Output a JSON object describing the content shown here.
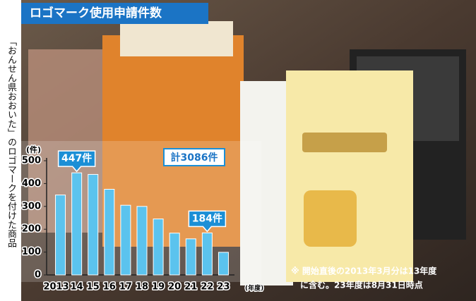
{
  "side_caption": "「おんせん県おおいた」のロゴマークを付けた商品",
  "chart_data": {
    "type": "bar",
    "title": "ロゴマーク使用申請件数",
    "y_unit": "(件)",
    "x_unit": "(年度)",
    "total_label": "計3086件",
    "note": [
      "※ 開始直後の2013年3月分は13年度",
      "に含む。23年度は8月31日時点"
    ],
    "categories": [
      "2013",
      "14",
      "15",
      "16",
      "17",
      "18",
      "19",
      "20",
      "21",
      "22",
      "23"
    ],
    "values": [
      350,
      447,
      440,
      375,
      305,
      300,
      245,
      183,
      158,
      184,
      99
    ],
    "value_labels": [
      null,
      "447件",
      null,
      null,
      null,
      null,
      null,
      null,
      null,
      "184件",
      null
    ],
    "color": "#5bc3ee",
    "ylim": [
      0,
      500
    ],
    "yticks": [
      0,
      100,
      200,
      300,
      400,
      500
    ],
    "grid": false
  }
}
